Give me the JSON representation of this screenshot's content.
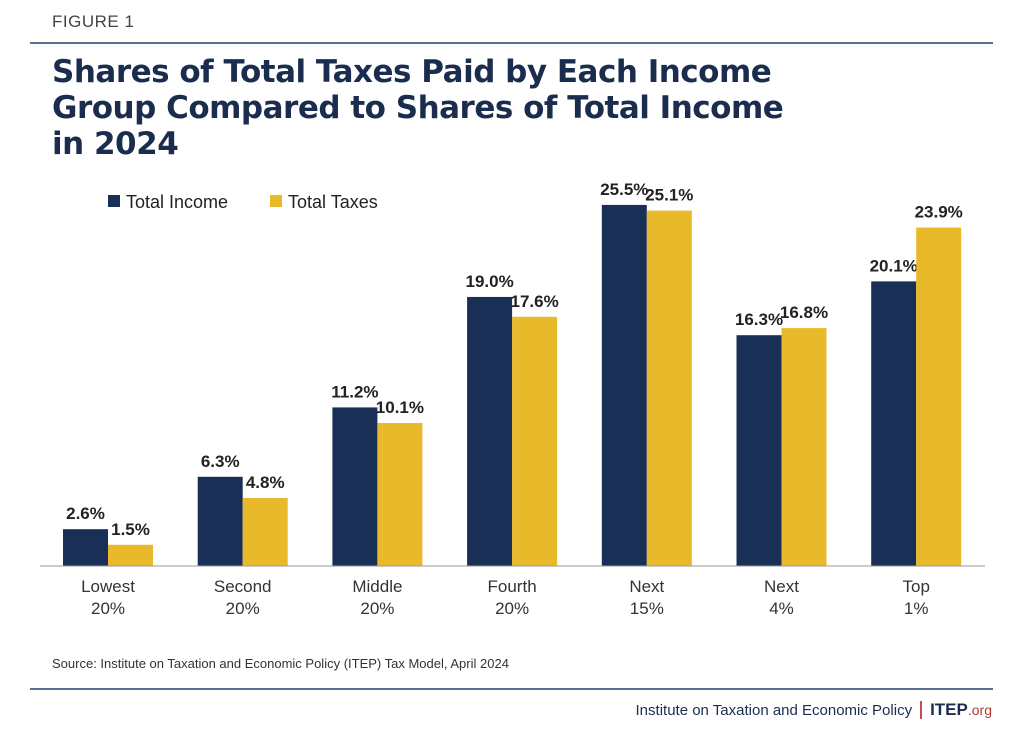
{
  "header": {
    "figure_label": "FIGURE 1"
  },
  "chart_data": {
    "type": "bar",
    "title": "Shares of Total Taxes Paid by Each Income Group Compared to Shares of Total Income in 2024",
    "categories": [
      [
        "Lowest",
        "20%"
      ],
      [
        "Second",
        "20%"
      ],
      [
        "Middle",
        "20%"
      ],
      [
        "Fourth",
        "20%"
      ],
      [
        "Next",
        "15%"
      ],
      [
        "Next",
        "4%"
      ],
      [
        "Top",
        "1%"
      ]
    ],
    "series": [
      {
        "name": "Total Income",
        "color": "#1a2f56",
        "values": [
          2.6,
          6.3,
          11.2,
          19.0,
          25.5,
          16.3,
          20.1
        ],
        "labels": [
          "2.6%",
          "6.3%",
          "11.2%",
          "19.0%",
          "25.5%",
          "16.3%",
          "20.1%"
        ]
      },
      {
        "name": "Total Taxes",
        "color": "#e8b92a",
        "values": [
          1.5,
          4.8,
          10.1,
          17.6,
          25.1,
          16.8,
          23.9
        ],
        "labels": [
          "1.5%",
          "4.8%",
          "10.1%",
          "17.6%",
          "25.1%",
          "16.8%",
          "23.9%"
        ]
      }
    ],
    "xlabel": "",
    "ylabel": "",
    "ylim": [
      0,
      27
    ],
    "grid": false,
    "legend": "top-left"
  },
  "source": "Source: Institute on Taxation and Economic Policy (ITEP) Tax Model, April 2024",
  "footer": {
    "org_name": "Institute on Taxation and Economic Policy",
    "logo_text": "ITEP",
    "logo_suffix": ".org"
  }
}
